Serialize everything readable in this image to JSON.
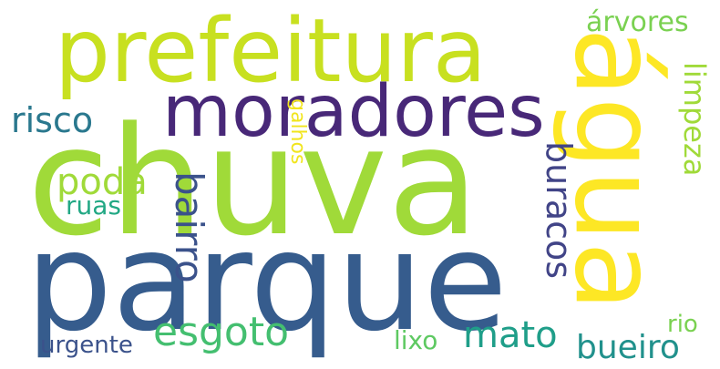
{
  "words": [
    {
      "id": "chuva",
      "text": "chuva",
      "color": "#a0da39",
      "vertical": false
    },
    {
      "id": "parque",
      "text": "parque",
      "color": "#365c8d",
      "vertical": false
    },
    {
      "id": "agua",
      "text": "água",
      "color": "#fde725",
      "vertical": true
    },
    {
      "id": "prefeitura",
      "text": "prefeitura",
      "color": "#c8e020",
      "vertical": false
    },
    {
      "id": "moradores",
      "text": "moradores",
      "color": "#482878",
      "vertical": false
    },
    {
      "id": "risco",
      "text": "risco",
      "color": "#2a788e",
      "vertical": false
    },
    {
      "id": "poda",
      "text": "poda",
      "color": "#a0da39",
      "vertical": false
    },
    {
      "id": "ruas",
      "text": "ruas",
      "color": "#22a884",
      "vertical": false
    },
    {
      "id": "galhos",
      "text": "galhos",
      "color": "#f1e51d",
      "vertical": true
    },
    {
      "id": "bairro",
      "text": "bairro",
      "color": "#3b528b",
      "vertical": true
    },
    {
      "id": "buracos",
      "text": "buracos",
      "color": "#414487",
      "vertical": true
    },
    {
      "id": "arvores",
      "text": "árvores",
      "color": "#7ad151",
      "vertical": false
    },
    {
      "id": "limpeza",
      "text": "limpeza",
      "color": "#a0da39",
      "vertical": true
    },
    {
      "id": "esgoto",
      "text": "esgoto",
      "color": "#44bf70",
      "vertical": false
    },
    {
      "id": "mato",
      "text": "mato",
      "color": "#1f9e89",
      "vertical": false
    },
    {
      "id": "lixo",
      "text": "lixo",
      "color": "#5ec962",
      "vertical": false
    },
    {
      "id": "bueiro",
      "text": "bueiro",
      "color": "#21918c",
      "vertical": false
    },
    {
      "id": "rio",
      "text": "rio",
      "color": "#7ad151",
      "vertical": false
    },
    {
      "id": "urgente",
      "text": "urgente",
      "color": "#3b528b",
      "vertical": false
    }
  ]
}
